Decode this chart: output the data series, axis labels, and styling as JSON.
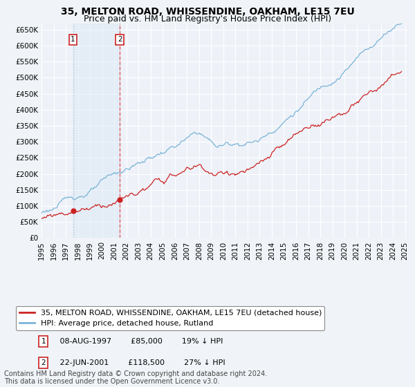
{
  "title_line1": "35, MELTON ROAD, WHISSENDINE, OAKHAM, LE15 7EU",
  "title_line2": "Price paid vs. HM Land Registry's House Price Index (HPI)",
  "ylabel_ticks": [
    "£0",
    "£50K",
    "£100K",
    "£150K",
    "£200K",
    "£250K",
    "£300K",
    "£350K",
    "£400K",
    "£450K",
    "£500K",
    "£550K",
    "£600K",
    "£650K"
  ],
  "ytick_values": [
    0,
    50000,
    100000,
    150000,
    200000,
    250000,
    300000,
    350000,
    400000,
    450000,
    500000,
    550000,
    600000,
    650000
  ],
  "xtick_years": [
    1995,
    1996,
    1997,
    1998,
    1999,
    2000,
    2001,
    2002,
    2003,
    2004,
    2005,
    2006,
    2007,
    2008,
    2009,
    2010,
    2011,
    2012,
    2013,
    2014,
    2015,
    2016,
    2017,
    2018,
    2019,
    2020,
    2021,
    2022,
    2023,
    2024,
    2025
  ],
  "sale1_date": 1997.6,
  "sale1_price": 85000,
  "sale1_label": "1",
  "sale1_text": "08-AUG-1997",
  "sale1_price_str": "£85,000",
  "sale1_hpi_str": "19% ↓ HPI",
  "sale2_date": 2001.47,
  "sale2_price": 118500,
  "sale2_label": "2",
  "sale2_text": "22-JUN-2001",
  "sale2_price_str": "£118,500",
  "sale2_hpi_str": "27% ↓ HPI",
  "hpi_line_color": "#7ab3d8",
  "price_line_color": "#cc2222",
  "sale_dot_color": "#cc2222",
  "sale1_vline_color": "#a8c4e0",
  "sale2_vline_color": "#e06060",
  "shade_color": "#d8e8f5",
  "background_color": "#eef2f8",
  "grid_color": "#ffffff",
  "legend_label1": "35, MELTON ROAD, WHISSENDINE, OAKHAM, LE15 7EU (detached house)",
  "legend_label2": "HPI: Average price, detached house, Rutland",
  "footer_text": "Contains HM Land Registry data © Crown copyright and database right 2024.\nThis data is licensed under the Open Government Licence v3.0.",
  "title_fontsize": 10,
  "subtitle_fontsize": 9,
  "tick_fontsize": 7.5,
  "legend_fontsize": 8,
  "footer_fontsize": 7
}
